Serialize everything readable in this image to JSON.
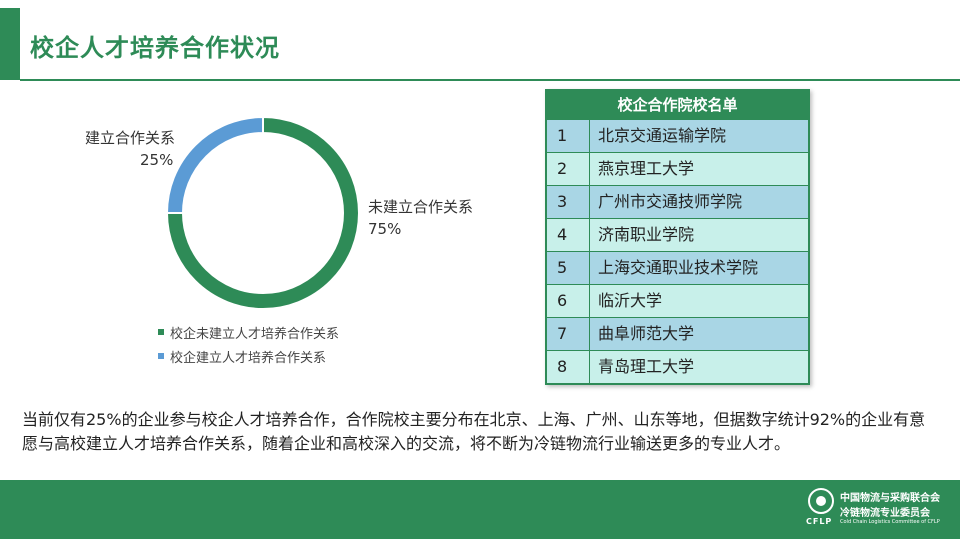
{
  "header": {
    "title": "校企人才培养合作状况"
  },
  "chart_data": {
    "type": "pie",
    "categories": [
      "校企未建立人才培养合作关系",
      "校企建立人才培养合作关系"
    ],
    "values": [
      75,
      25
    ],
    "colors": [
      "#2e8b57",
      "#5b9bd5"
    ],
    "donut": true,
    "labels": [
      {
        "name": "未建立合作关系",
        "value": "75%"
      },
      {
        "name": "建立合作关系",
        "value": "25%"
      }
    ],
    "legend": {
      "placement": "bottom",
      "items": [
        "校企未建立人才培养合作关系",
        "校企建立人才培养合作关系"
      ]
    }
  },
  "table": {
    "title": "校企合作院校名单",
    "rows": [
      {
        "num": "1",
        "name": "北京交通运输学院"
      },
      {
        "num": "2",
        "name": "燕京理工大学"
      },
      {
        "num": "3",
        "name": "广州市交通技师学院"
      },
      {
        "num": "4",
        "name": "济南职业学院"
      },
      {
        "num": "5",
        "name": "上海交通职业技术学院"
      },
      {
        "num": "6",
        "name": "临沂大学"
      },
      {
        "num": "7",
        "name": "曲阜师范大学"
      },
      {
        "num": "8",
        "name": "青岛理工大学"
      }
    ]
  },
  "description": "当前仅有25%的企业参与校企人才培养合作，合作院校主要分布在北京、上海、广州、山东等地，但据数字统计92%的企业有意愿与高校建立人才培养合作关系，随着企业和高校深入的交流，将不断为冷链物流行业输送更多的专业人才。",
  "footer": {
    "org_line1": "中国物流与采购联合会",
    "org_line2": "冷链物流专业委员会",
    "org_abbr": "CFLP",
    "org_en": "Cold Chain Logistics Committee of CFLP"
  }
}
